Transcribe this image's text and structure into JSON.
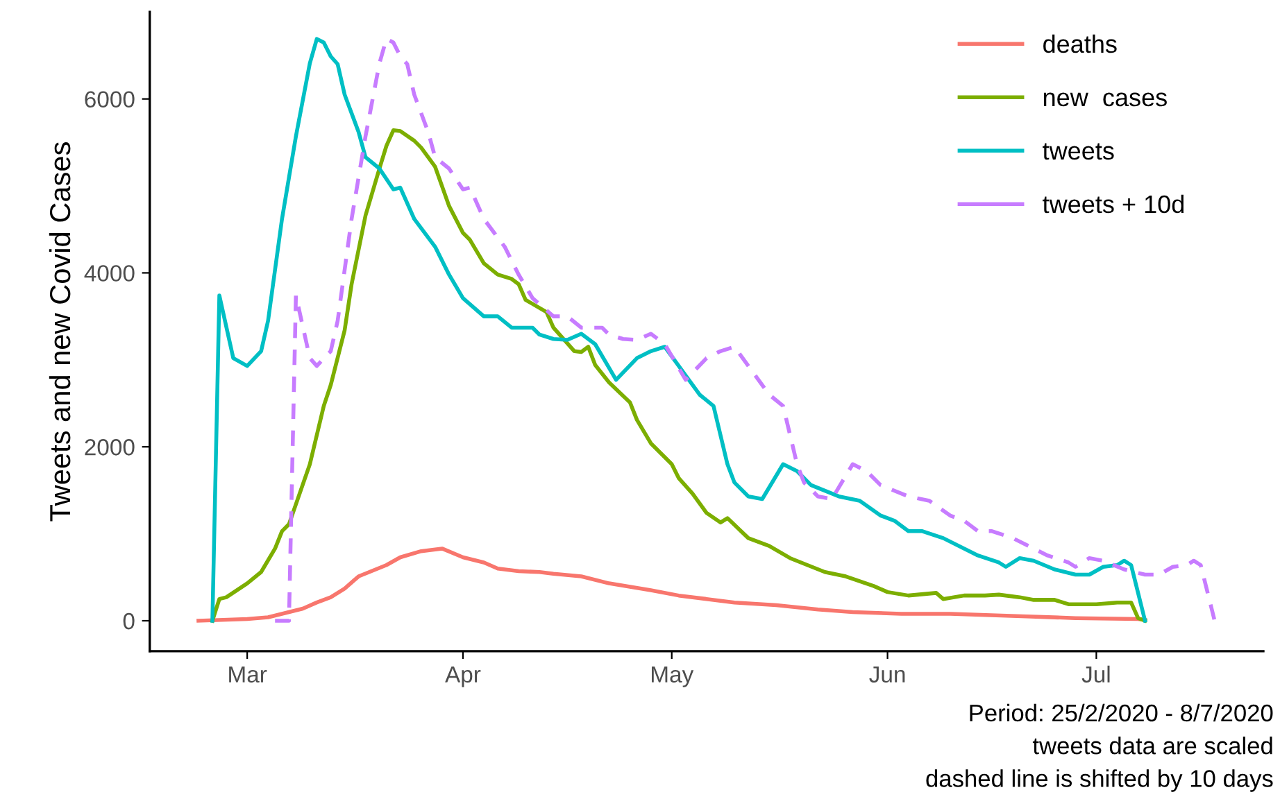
{
  "chart_data": {
    "type": "line",
    "ylabel": "Tweets and new Covid Cases",
    "xlim": [
      "2020-02-16",
      "2020-07-25"
    ],
    "ylim": [
      -350,
      7000
    ],
    "xticks": [
      {
        "value": "2020-03-01",
        "label": "Mar"
      },
      {
        "value": "2020-04-01",
        "label": "Apr"
      },
      {
        "value": "2020-05-01",
        "label": "May"
      },
      {
        "value": "2020-06-01",
        "label": "Jun"
      },
      {
        "value": "2020-07-01",
        "label": "Jul"
      }
    ],
    "yticks": [
      0,
      2000,
      4000,
      6000
    ],
    "grid": false,
    "legend": "top right",
    "marker": "none",
    "annotations": [
      "Period: 25/2/2020 - 8/7/2020",
      "tweets data are scaled",
      "dashed line is shifted by 10 days"
    ],
    "series": [
      {
        "name": "deaths",
        "color": "#f8766d",
        "line_style": "solid",
        "x": [
          "2020-02-23",
          "2020-03-01",
          "2020-03-04",
          "2020-03-06",
          "2020-03-09",
          "2020-03-11",
          "2020-03-13",
          "2020-03-15",
          "2020-03-17",
          "2020-03-21",
          "2020-03-23",
          "2020-03-26",
          "2020-03-29",
          "2020-04-01",
          "2020-04-04",
          "2020-04-06",
          "2020-04-09",
          "2020-04-12",
          "2020-04-14",
          "2020-04-18",
          "2020-04-22",
          "2020-04-28",
          "2020-05-02",
          "2020-05-06",
          "2020-05-10",
          "2020-05-16",
          "2020-05-22",
          "2020-05-27",
          "2020-06-03",
          "2020-06-10",
          "2020-06-21",
          "2020-06-28",
          "2020-07-07",
          "2020-07-08"
        ],
        "values": [
          0,
          20,
          40,
          80,
          140,
          210,
          270,
          370,
          510,
          640,
          730,
          800,
          830,
          730,
          670,
          600,
          570,
          560,
          540,
          510,
          430,
          350,
          290,
          250,
          210,
          180,
          130,
          100,
          80,
          80,
          50,
          30,
          20,
          10
        ]
      },
      {
        "name": "new  cases",
        "color": "#7cae00",
        "line_style": "solid",
        "x": [
          "2020-02-25",
          "2020-02-26",
          "2020-02-27",
          "2020-03-01",
          "2020-03-03",
          "2020-03-05",
          "2020-03-06",
          "2020-03-07",
          "2020-03-10",
          "2020-03-12",
          "2020-03-13",
          "2020-03-15",
          "2020-03-16",
          "2020-03-18",
          "2020-03-20",
          "2020-03-21",
          "2020-03-22",
          "2020-03-23",
          "2020-03-25",
          "2020-03-26",
          "2020-03-28",
          "2020-03-30",
          "2020-04-01",
          "2020-04-02",
          "2020-04-04",
          "2020-04-06",
          "2020-04-08",
          "2020-04-09",
          "2020-04-10",
          "2020-04-13",
          "2020-04-14",
          "2020-04-17",
          "2020-04-18",
          "2020-04-19",
          "2020-04-20",
          "2020-04-22",
          "2020-04-25",
          "2020-04-26",
          "2020-04-28",
          "2020-05-01",
          "2020-05-02",
          "2020-05-04",
          "2020-05-06",
          "2020-05-08",
          "2020-05-09",
          "2020-05-12",
          "2020-05-15",
          "2020-05-18",
          "2020-05-23",
          "2020-05-26",
          "2020-05-30",
          "2020-06-01",
          "2020-06-04",
          "2020-06-08",
          "2020-06-09",
          "2020-06-12",
          "2020-06-15",
          "2020-06-17",
          "2020-06-20",
          "2020-06-22",
          "2020-06-25",
          "2020-06-27",
          "2020-07-01",
          "2020-07-04",
          "2020-07-06",
          "2020-07-07",
          "2020-07-08"
        ],
        "values": [
          0,
          250,
          270,
          430,
          560,
          830,
          1030,
          1110,
          1800,
          2470,
          2710,
          3340,
          3870,
          4660,
          5200,
          5460,
          5640,
          5630,
          5520,
          5440,
          5220,
          4770,
          4460,
          4380,
          4110,
          3980,
          3930,
          3870,
          3690,
          3550,
          3370,
          3100,
          3090,
          3150,
          2940,
          2740,
          2510,
          2310,
          2040,
          1800,
          1640,
          1460,
          1240,
          1130,
          1180,
          950,
          860,
          720,
          560,
          510,
          400,
          330,
          290,
          320,
          250,
          290,
          290,
          300,
          270,
          240,
          240,
          190,
          190,
          210,
          210,
          30,
          0
        ]
      },
      {
        "name": "tweets",
        "color": "#00bfc4",
        "line_style": "solid",
        "x": [
          "2020-02-25",
          "2020-02-26",
          "2020-02-28",
          "2020-03-01",
          "2020-03-03",
          "2020-03-04",
          "2020-03-06",
          "2020-03-08",
          "2020-03-10",
          "2020-03-11",
          "2020-03-12",
          "2020-03-13",
          "2020-03-14",
          "2020-03-15",
          "2020-03-17",
          "2020-03-18",
          "2020-03-20",
          "2020-03-22",
          "2020-03-23",
          "2020-03-25",
          "2020-03-28",
          "2020-03-30",
          "2020-04-01",
          "2020-04-04",
          "2020-04-06",
          "2020-04-08",
          "2020-04-11",
          "2020-04-12",
          "2020-04-14",
          "2020-04-16",
          "2020-04-18",
          "2020-04-20",
          "2020-04-23",
          "2020-04-26",
          "2020-04-28",
          "2020-04-30",
          "2020-05-03",
          "2020-05-05",
          "2020-05-07",
          "2020-05-09",
          "2020-05-10",
          "2020-05-12",
          "2020-05-14",
          "2020-05-17",
          "2020-05-19",
          "2020-05-21",
          "2020-05-25",
          "2020-05-28",
          "2020-05-31",
          "2020-06-02",
          "2020-06-04",
          "2020-06-06",
          "2020-06-09",
          "2020-06-14",
          "2020-06-17",
          "2020-06-18",
          "2020-06-20",
          "2020-06-22",
          "2020-06-25",
          "2020-06-28",
          "2020-06-30",
          "2020-07-02",
          "2020-07-04",
          "2020-07-05",
          "2020-07-06",
          "2020-07-08"
        ],
        "values": [
          0,
          3740,
          3020,
          2930,
          3100,
          3450,
          4620,
          5570,
          6410,
          6690,
          6650,
          6490,
          6400,
          6050,
          5620,
          5330,
          5200,
          4960,
          4980,
          4620,
          4300,
          3980,
          3710,
          3500,
          3500,
          3370,
          3370,
          3290,
          3240,
          3230,
          3300,
          3180,
          2770,
          3020,
          3100,
          3150,
          2820,
          2600,
          2470,
          1800,
          1590,
          1430,
          1400,
          1800,
          1720,
          1560,
          1430,
          1380,
          1210,
          1150,
          1030,
          1030,
          950,
          750,
          670,
          620,
          720,
          690,
          590,
          530,
          530,
          620,
          640,
          690,
          640,
          0
        ]
      },
      {
        "name": "tweets + 10d",
        "color": "#c77cff",
        "line_style": "dashed",
        "x": [
          "2020-03-05",
          "2020-03-07",
          "2020-03-08",
          "2020-03-10",
          "2020-03-11",
          "2020-03-13",
          "2020-03-14",
          "2020-03-16",
          "2020-03-18",
          "2020-03-20",
          "2020-03-21",
          "2020-03-22",
          "2020-03-23",
          "2020-03-24",
          "2020-03-25",
          "2020-03-27",
          "2020-03-28",
          "2020-03-30",
          "2020-04-01",
          "2020-04-02",
          "2020-04-04",
          "2020-04-07",
          "2020-04-09",
          "2020-04-11",
          "2020-04-14",
          "2020-04-16",
          "2020-04-18",
          "2020-04-21",
          "2020-04-22",
          "2020-04-24",
          "2020-04-26",
          "2020-04-28",
          "2020-04-30",
          "2020-05-03",
          "2020-05-06",
          "2020-05-08",
          "2020-05-10",
          "2020-05-13",
          "2020-05-15",
          "2020-05-17",
          "2020-05-19",
          "2020-05-20",
          "2020-05-22",
          "2020-05-24",
          "2020-05-27",
          "2020-05-29",
          "2020-05-31",
          "2020-06-04",
          "2020-06-07",
          "2020-06-10",
          "2020-06-12",
          "2020-06-14",
          "2020-06-16",
          "2020-06-19",
          "2020-06-24",
          "2020-06-27",
          "2020-06-28",
          "2020-06-30",
          "2020-07-02",
          "2020-07-05",
          "2020-07-08",
          "2020-07-10",
          "2020-07-12",
          "2020-07-14",
          "2020-07-15",
          "2020-07-16",
          "2020-07-18"
        ],
        "values": [
          0,
          0,
          3740,
          3020,
          2930,
          3100,
          3450,
          4620,
          5570,
          6410,
          6690,
          6650,
          6490,
          6400,
          6050,
          5620,
          5330,
          5200,
          4960,
          4980,
          4620,
          4300,
          3980,
          3710,
          3500,
          3500,
          3370,
          3370,
          3290,
          3240,
          3230,
          3300,
          3180,
          2770,
          3020,
          3100,
          3150,
          2820,
          2600,
          2470,
          1800,
          1590,
          1430,
          1400,
          1800,
          1720,
          1560,
          1430,
          1380,
          1210,
          1150,
          1030,
          1030,
          950,
          750,
          670,
          620,
          720,
          690,
          590,
          530,
          530,
          620,
          640,
          690,
          640,
          0
        ]
      }
    ]
  }
}
